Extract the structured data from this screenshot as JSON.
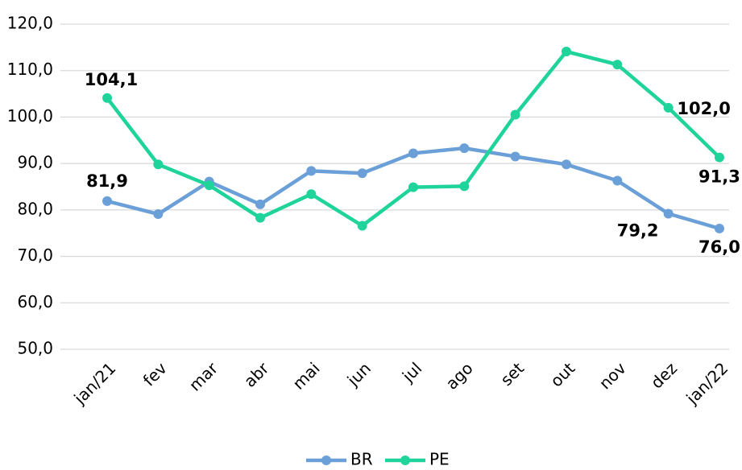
{
  "chart_data": {
    "type": "line",
    "categories": [
      "jan/21",
      "fev",
      "mar",
      "abr",
      "mai",
      "jun",
      "jul",
      "ago",
      "set",
      "out",
      "nov",
      "dez",
      "jan/22"
    ],
    "series": [
      {
        "name": "BR",
        "color": "#6a9fd8",
        "values": [
          81.9,
          79.1,
          86.1,
          81.2,
          88.4,
          87.9,
          92.2,
          93.3,
          91.5,
          89.8,
          86.3,
          79.2,
          76.0
        ],
        "value_labels": [
          "81,9",
          null,
          null,
          null,
          null,
          null,
          null,
          null,
          null,
          null,
          null,
          "79,2",
          "76,0"
        ]
      },
      {
        "name": "PE",
        "color": "#1fd49a",
        "values": [
          104.1,
          89.8,
          85.3,
          78.3,
          83.4,
          76.6,
          84.9,
          85.1,
          100.5,
          114.1,
          111.3,
          102.0,
          91.3
        ],
        "value_labels": [
          "104,1",
          null,
          null,
          null,
          null,
          null,
          null,
          null,
          null,
          null,
          null,
          "102,0",
          "91,3"
        ]
      }
    ],
    "ylim": [
      50,
      120
    ],
    "yticks": [
      {
        "value": 50,
        "label": "50,0"
      },
      {
        "value": 60,
        "label": "60,0"
      },
      {
        "value": 70,
        "label": "70,0"
      },
      {
        "value": 80,
        "label": "80,0"
      },
      {
        "value": 90,
        "label": "90,0"
      },
      {
        "value": 100,
        "label": "100,0"
      },
      {
        "value": 110,
        "label": "110,0"
      },
      {
        "value": 120,
        "label": "120,0"
      }
    ],
    "grid": true,
    "legend": "bottom"
  }
}
